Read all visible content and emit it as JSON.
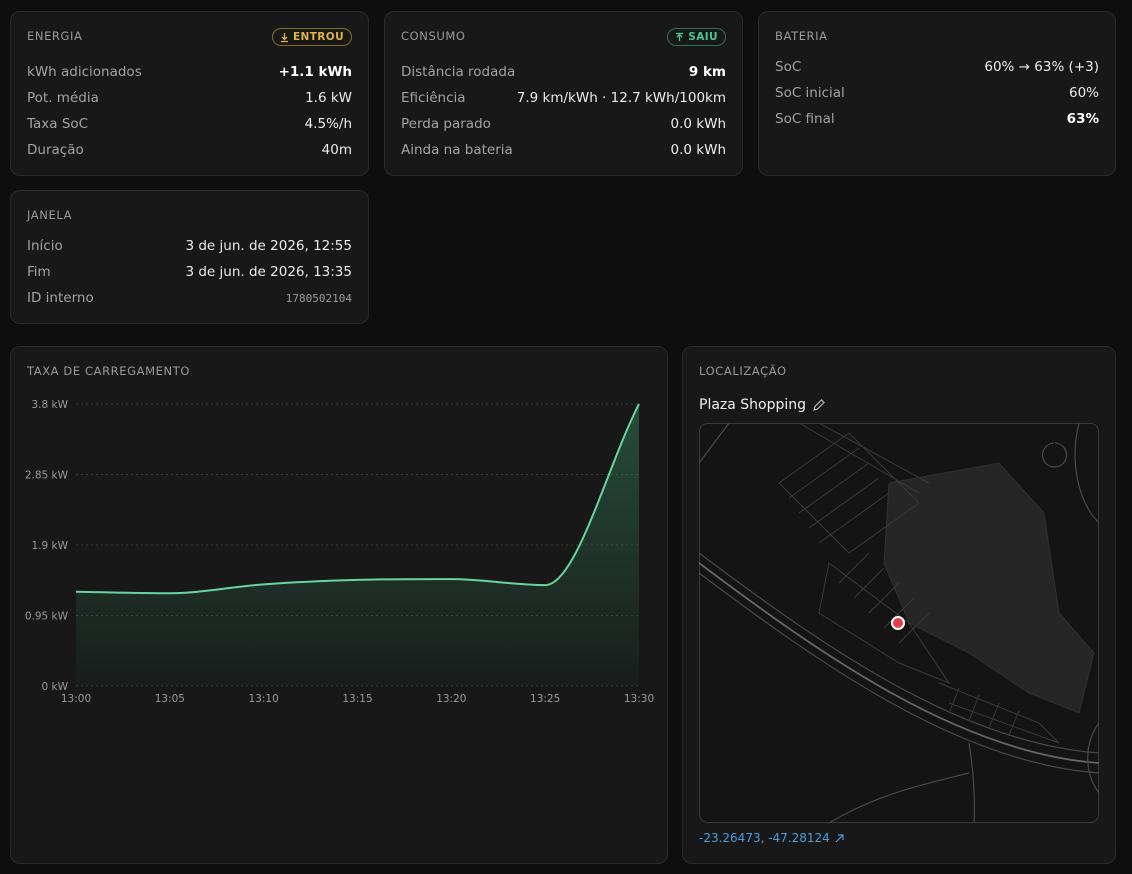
{
  "energia": {
    "title": "ENERGIA",
    "badge": "ENTROU",
    "rows": [
      {
        "label": "kWh adicionados",
        "value": "+1.1 kWh"
      },
      {
        "label": "Pot. média",
        "value": "1.6 kW"
      },
      {
        "label": "Taxa SoC",
        "value": "4.5%/h"
      },
      {
        "label": "Duração",
        "value": "40m"
      }
    ]
  },
  "consumo": {
    "title": "CONSUMO",
    "badge": "SAIU",
    "rows": [
      {
        "label": "Distância rodada",
        "value": "9 km"
      },
      {
        "label": "Eficiência",
        "value": "7.9 km/kWh · 12.7 kWh/100km"
      },
      {
        "label": "Perda parado",
        "value": "0.0 kWh"
      },
      {
        "label": "Ainda na bateria",
        "value": "0.0 kWh"
      }
    ]
  },
  "bateria": {
    "title": "BATERIA",
    "rows": [
      {
        "label": "SoC",
        "value": "60% → 63% (+3)"
      },
      {
        "label": "SoC inicial",
        "value": "60%"
      },
      {
        "label": "SoC final",
        "value": "63%"
      }
    ]
  },
  "janela": {
    "title": "JANELA",
    "rows": [
      {
        "label": "Início",
        "value": "3 de jun. de 2026, 12:55"
      },
      {
        "label": "Fim",
        "value": "3 de jun. de 2026, 13:35"
      },
      {
        "label": "ID interno",
        "value": "1780502104"
      }
    ]
  },
  "chart_data": {
    "type": "line",
    "title": "TAXA DE CARREGAMENTO",
    "categories": [
      "13:00",
      "13:05",
      "13:10",
      "13:15",
      "13:20",
      "13:25",
      "13:30"
    ],
    "values": [
      1.27,
      1.25,
      1.37,
      1.43,
      1.44,
      1.36,
      3.8
    ],
    "color": "#6ad4a0",
    "ylim": [
      0,
      3.8
    ],
    "yticks": [
      {
        "value": 0,
        "label": "0 kW"
      },
      {
        "value": 0.95,
        "label": "0.95 kW"
      },
      {
        "value": 1.9,
        "label": "1.9 kW"
      },
      {
        "value": 2.85,
        "label": "2.85 kW"
      },
      {
        "value": 3.8,
        "label": "3.8 kW"
      }
    ],
    "grid": true
  },
  "localizacao": {
    "title": "LOCALIZAÇÃO",
    "place": "Plaza Shopping",
    "coordinates": "-23.26473, -47.28124"
  }
}
